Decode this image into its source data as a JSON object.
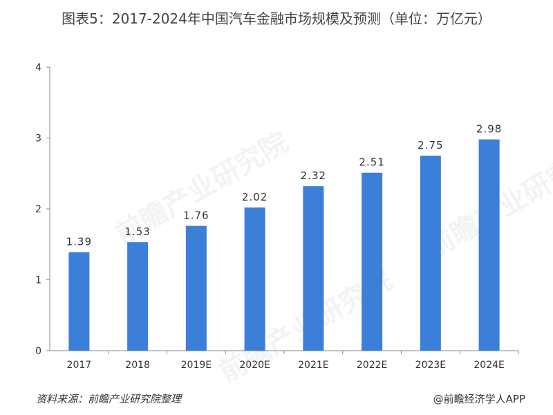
{
  "chart_data": {
    "type": "bar",
    "title": "图表5：2017-2024年中国汽车金融市场规模及预测（单位：万亿元）",
    "categories": [
      "2017",
      "2018",
      "2019E",
      "2020E",
      "2021E",
      "2022E",
      "2023E",
      "2024E"
    ],
    "values": [
      1.39,
      1.53,
      1.76,
      2.02,
      2.32,
      2.51,
      2.75,
      2.98
    ],
    "data_labels": [
      "1.39",
      "1.53",
      "1.76",
      "2.02",
      "2.32",
      "2.51",
      "2.75",
      "2.98"
    ],
    "y_ticks": [
      "0",
      "1",
      "2",
      "3",
      "4"
    ],
    "ylim": [
      0,
      4
    ],
    "grid": false,
    "legend": "none",
    "bar_color": "#3b7fd9"
  },
  "footer": {
    "source": "资料来源：前瞻产业研究院整理",
    "credit": "@前瞻经济学人APP"
  },
  "watermark": {
    "text": "前瞻产业研究院"
  }
}
